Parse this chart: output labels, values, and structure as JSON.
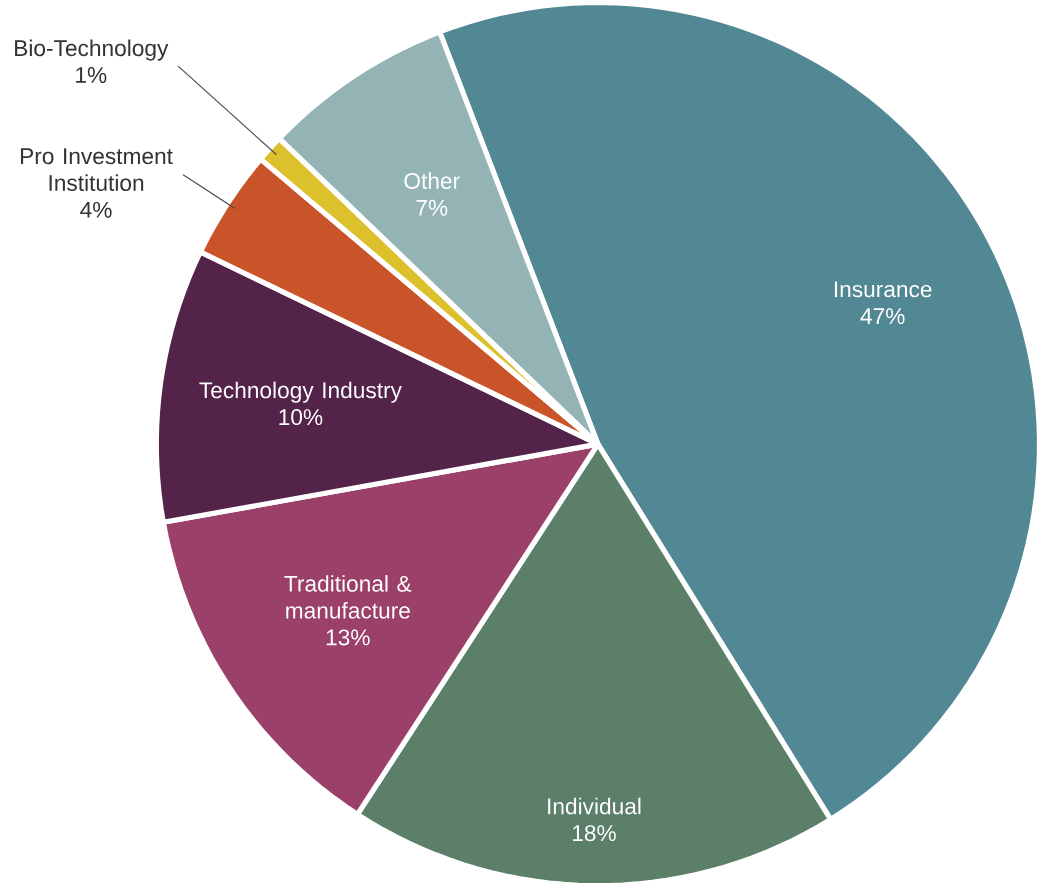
{
  "chart_data": {
    "type": "pie",
    "categories": [
      "Insurance",
      "Individual",
      "Traditional & manufacture",
      "Technology Industry",
      "Pro Investment Institution",
      "Bio-Technology",
      "Other"
    ],
    "values": [
      47,
      18,
      13,
      10,
      4,
      1,
      7
    ],
    "value_labels": [
      "47%",
      "18%",
      "13%",
      "10%",
      "4%",
      "1%",
      "7%"
    ],
    "colors": [
      "#528893",
      "#5b7f69",
      "#9b4068",
      "#53234a",
      "#c9542a",
      "#dcc12c",
      "#94b3b5"
    ]
  }
}
